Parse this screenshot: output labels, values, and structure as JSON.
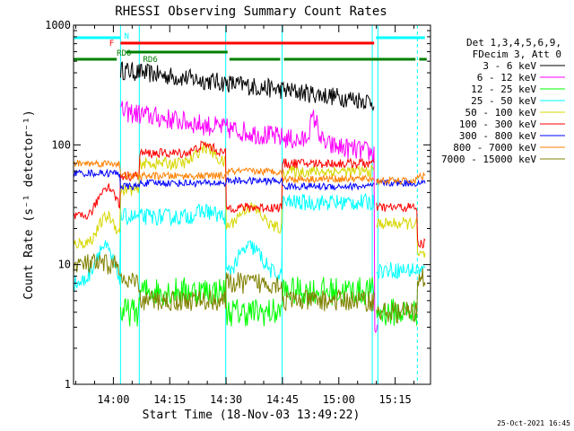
{
  "chart_data": {
    "type": "line",
    "title": "RHESSI Observing Summary Count Rates",
    "xlabel": "Start Time (18-Nov-03 13:49:22)",
    "ylabel": "Count Rate (s⁻¹ detector⁻¹)",
    "yscale": "log",
    "ylim": [
      1,
      1000
    ],
    "xlim_minutes": [
      0,
      95
    ],
    "x_ticks": [
      {
        "m": 10.6,
        "label": "14:00"
      },
      {
        "m": 25.6,
        "label": "14:15"
      },
      {
        "m": 40.6,
        "label": "14:30"
      },
      {
        "m": 55.6,
        "label": "14:45"
      },
      {
        "m": 70.6,
        "label": "15:00"
      },
      {
        "m": 85.6,
        "label": "15:15"
      }
    ],
    "y_ticks": [
      {
        "v": 1,
        "label": "1"
      },
      {
        "v": 10,
        "label": "10"
      },
      {
        "v": 100,
        "label": "100"
      },
      {
        "v": 1000,
        "label": "1000"
      }
    ],
    "legend_header": [
      "Det 1,3,4,5,6,9,",
      "FDecim 3, Att 0"
    ],
    "series": [
      {
        "name": "3 - 6 keV",
        "color": "#000000"
      },
      {
        "name": "6 - 12 keV",
        "color": "#ff00ff"
      },
      {
        "name": "12 - 25 keV",
        "color": "#00ff00"
      },
      {
        "name": "25 - 50 keV",
        "color": "#00ffff"
      },
      {
        "name": "50 - 100 keV",
        "color": "#d7d700"
      },
      {
        "name": "100 - 300 keV",
        "color": "#ff0000"
      },
      {
        "name": "300 - 800 keV",
        "color": "#0000ff"
      },
      {
        "name": "800 - 7000 keV",
        "color": "#ff8000"
      },
      {
        "name": "7000 - 15000 keV",
        "color": "#808000"
      }
    ],
    "flag_labels": {
      "night": "N",
      "flare": "F",
      "radiation_rd0": "RD0",
      "radiation_rd6": "RD6"
    },
    "timestamp": "25-Oct-2021 16:45"
  }
}
